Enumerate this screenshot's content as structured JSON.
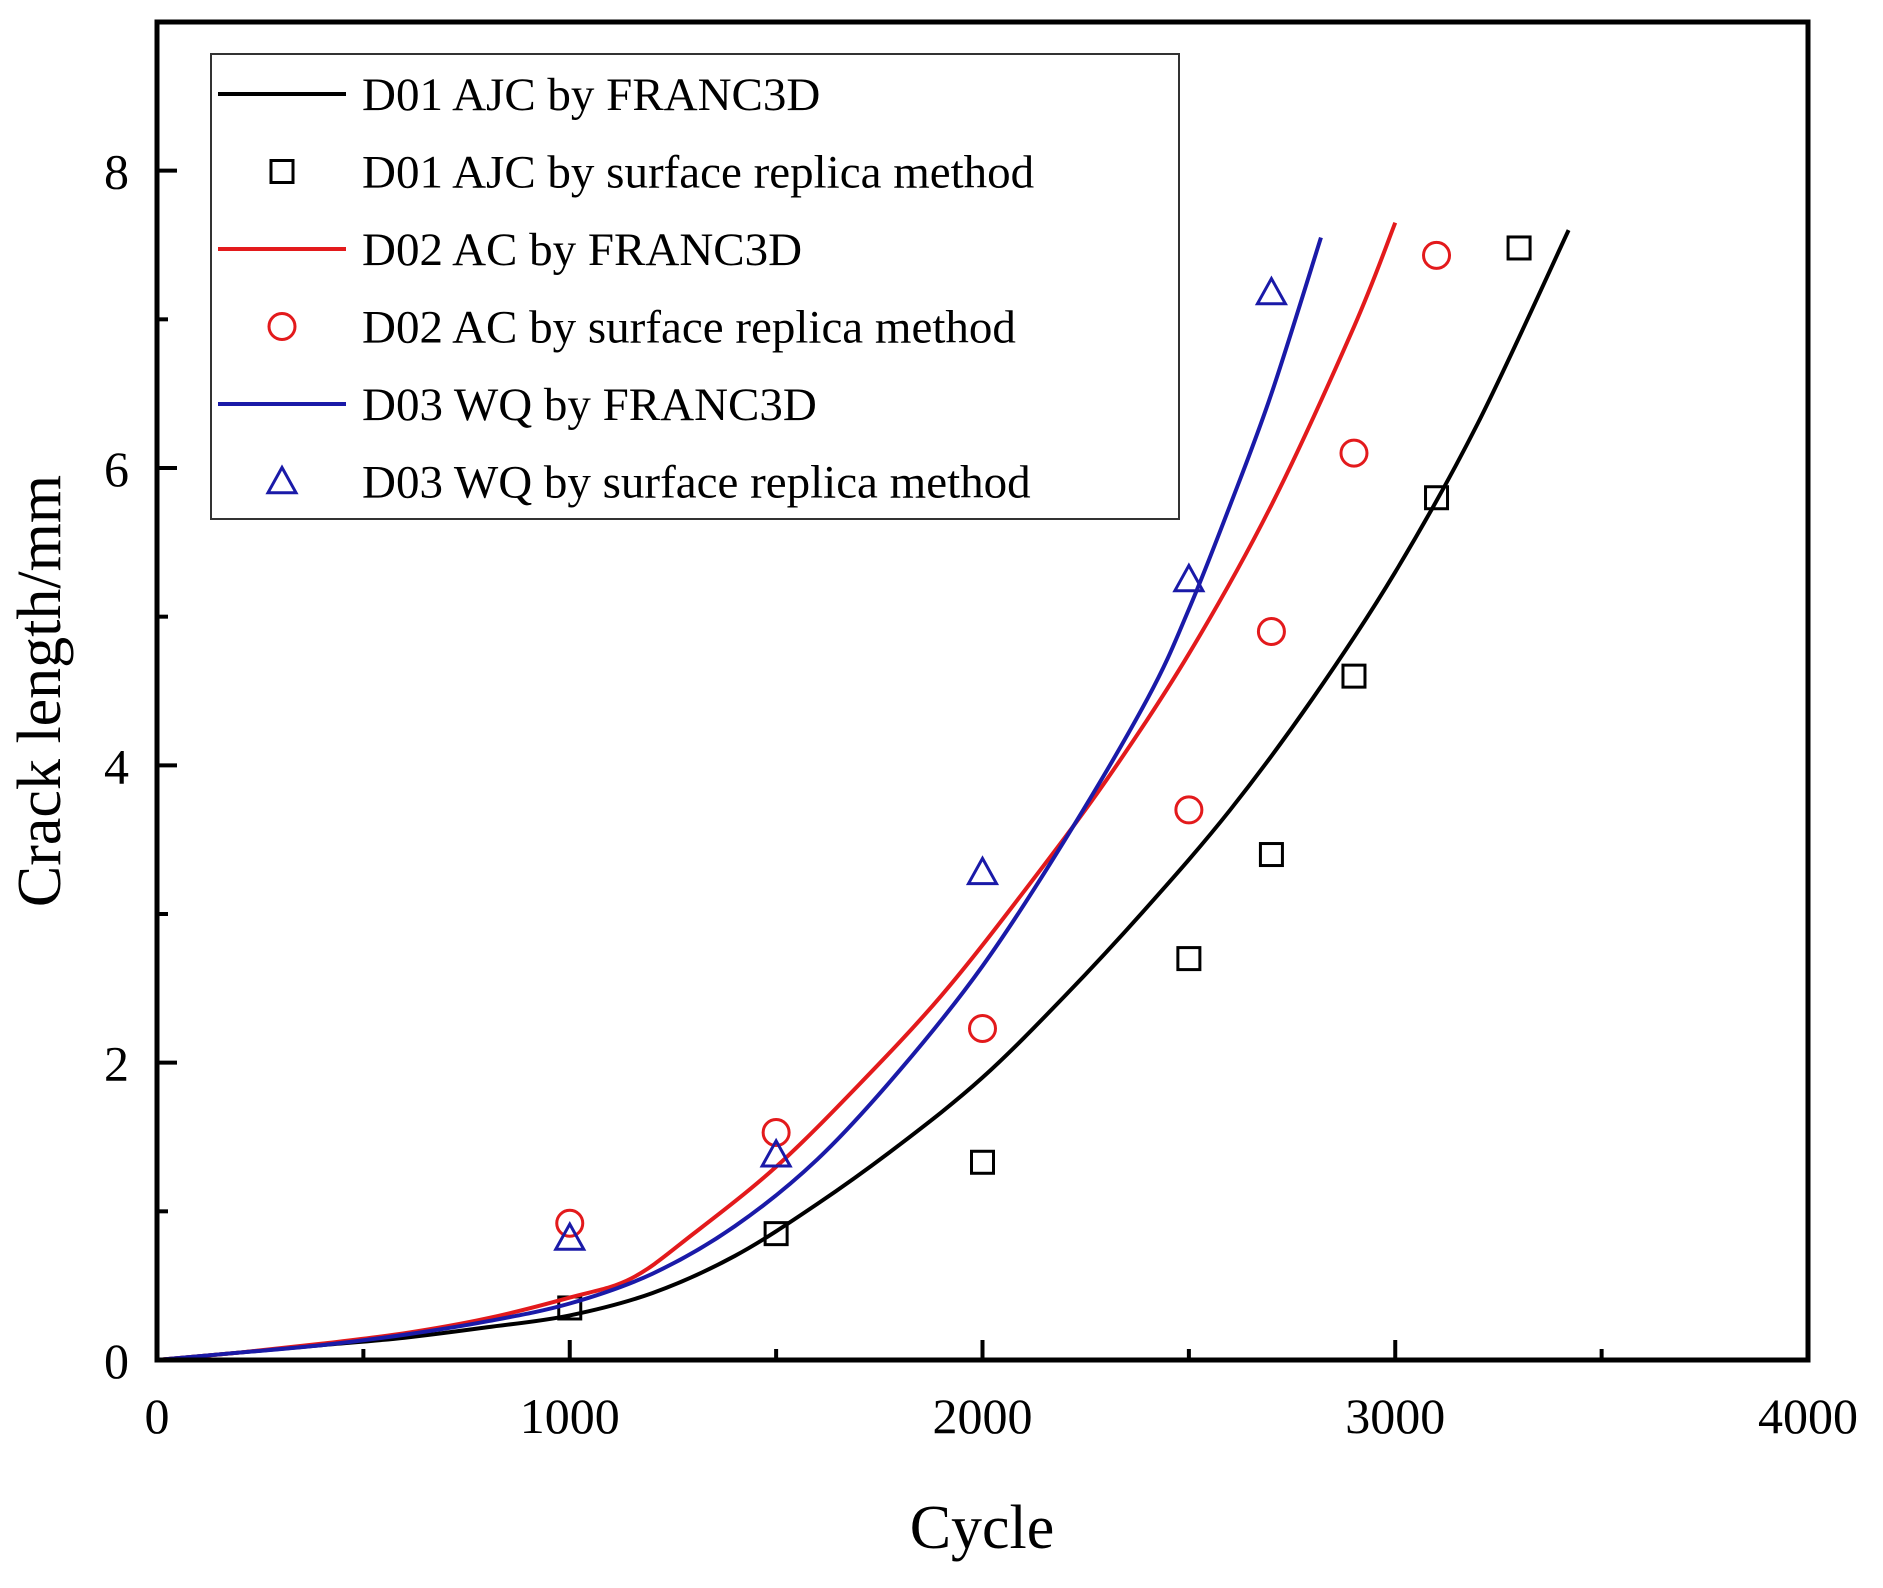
{
  "chart_data": {
    "type": "line",
    "title": "",
    "xlabel": "Cycle",
    "ylabel": "Crack length/mm",
    "xlim": [
      0,
      4000
    ],
    "ylim": [
      0,
      9
    ],
    "xticks": [
      0,
      1000,
      2000,
      3000,
      4000
    ],
    "yticks": [
      0,
      2,
      4,
      6,
      8
    ],
    "xtick_labels": [
      "0",
      "1000",
      "2000",
      "3000",
      "4000"
    ],
    "ytick_labels": [
      "0",
      "2",
      "4",
      "6",
      "8"
    ],
    "grid": false,
    "legend_position": "top-left",
    "series": [
      {
        "name": "D01 AJC by FRANC3D",
        "kind": "line",
        "color": "#000000",
        "x": [
          0,
          200,
          400,
          600,
          800,
          1000,
          1200,
          1400,
          1600,
          1800,
          2000,
          2200,
          2400,
          2600,
          2800,
          3000,
          3200,
          3420
        ],
        "y": [
          0,
          0.05,
          0.1,
          0.15,
          0.22,
          0.3,
          0.45,
          0.7,
          1.05,
          1.45,
          1.9,
          2.45,
          3.05,
          3.7,
          4.45,
          5.3,
          6.3,
          7.6
        ]
      },
      {
        "name": "D01 AJC by surface replica method",
        "kind": "scatter",
        "marker": "square",
        "color": "#000000",
        "x": [
          1000,
          1500,
          2000,
          2500,
          2700,
          2900,
          3100,
          3300
        ],
        "y": [
          0.35,
          0.85,
          1.33,
          2.7,
          3.4,
          4.6,
          5.8,
          7.48
        ]
      },
      {
        "name": "D02 AC by FRANC3D",
        "kind": "line",
        "color": "#e31a1c",
        "x": [
          0,
          200,
          400,
          600,
          800,
          1000,
          1150,
          1300,
          1500,
          1700,
          1900,
          2100,
          2300,
          2500,
          2700,
          2900,
          3000
        ],
        "y": [
          0,
          0.05,
          0.11,
          0.18,
          0.28,
          0.42,
          0.55,
          0.85,
          1.3,
          1.85,
          2.45,
          3.15,
          3.9,
          4.75,
          5.75,
          6.95,
          7.65
        ]
      },
      {
        "name": "D02 AC by surface replica method",
        "kind": "scatter",
        "marker": "circle",
        "color": "#e31a1c",
        "x": [
          1000,
          1500,
          2000,
          2500,
          2700,
          2900,
          3100
        ],
        "y": [
          0.92,
          1.53,
          2.23,
          3.7,
          4.9,
          6.1,
          7.43
        ]
      },
      {
        "name": "D03 WQ by FRANC3D",
        "kind": "line",
        "color": "#1a1aa8",
        "x": [
          0,
          200,
          400,
          600,
          800,
          1000,
          1200,
          1400,
          1600,
          1800,
          2000,
          2200,
          2400,
          2500,
          2600,
          2700,
          2820
        ],
        "y": [
          0,
          0.05,
          0.1,
          0.17,
          0.26,
          0.38,
          0.58,
          0.9,
          1.35,
          1.95,
          2.65,
          3.5,
          4.45,
          5.05,
          5.75,
          6.5,
          7.55
        ]
      },
      {
        "name": "D03 WQ by surface replica method",
        "kind": "scatter",
        "marker": "triangle",
        "color": "#1a1aa8",
        "x": [
          1000,
          1500,
          2000,
          2500,
          2700
        ],
        "y": [
          0.82,
          1.38,
          3.28,
          5.25,
          7.18
        ]
      }
    ]
  }
}
